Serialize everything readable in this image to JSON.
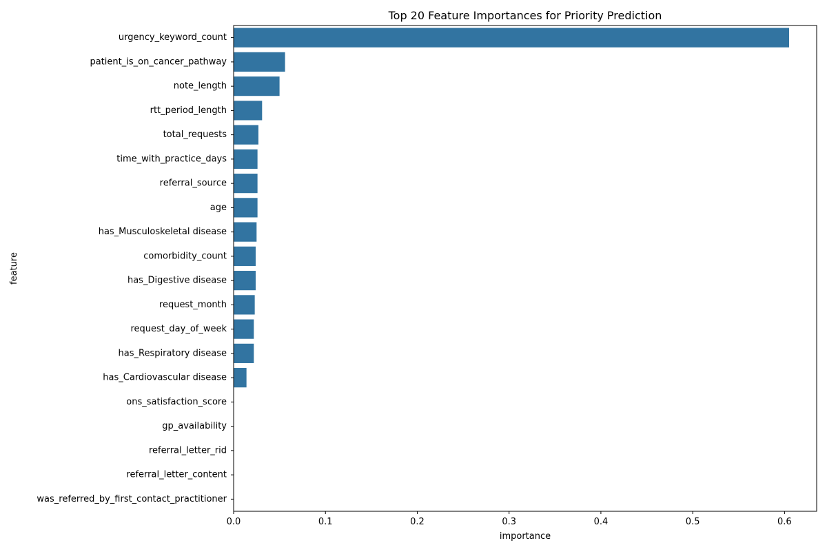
{
  "chart_data": {
    "type": "bar",
    "orientation": "horizontal",
    "title": "Top 20 Feature Importances for Priority Prediction",
    "xlabel": "importance",
    "ylabel": "feature",
    "xlim": [
      0,
      0.635
    ],
    "xticks": [
      0,
      0.1,
      0.2,
      0.3,
      0.4,
      0.5,
      0.6
    ],
    "xtick_labels": [
      "0.0",
      "0.1",
      "0.2",
      "0.3",
      "0.4",
      "0.5",
      "0.6"
    ],
    "grid": false,
    "bar_color": "#3274a1",
    "categories": [
      "urgency_keyword_count",
      "patient_is_on_cancer_pathway",
      "note_length",
      "rtt_period_length",
      "total_requests",
      "time_with_practice_days",
      "referral_source",
      "age",
      "has_Musculoskeletal disease",
      "comorbidity_count",
      "has_Digestive disease",
      "request_month",
      "request_day_of_week",
      "has_Respiratory disease",
      "has_Cardiovascular disease",
      "ons_satisfaction_score",
      "gp_availability",
      "referral_letter_rid",
      "referral_letter_content",
      "was_referred_by_first_contact_practitioner"
    ],
    "values": [
      0.605,
      0.056,
      0.05,
      0.031,
      0.027,
      0.026,
      0.026,
      0.026,
      0.025,
      0.024,
      0.024,
      0.023,
      0.022,
      0.022,
      0.014,
      0.0,
      0.0,
      0.0,
      0.0,
      0.0
    ]
  }
}
